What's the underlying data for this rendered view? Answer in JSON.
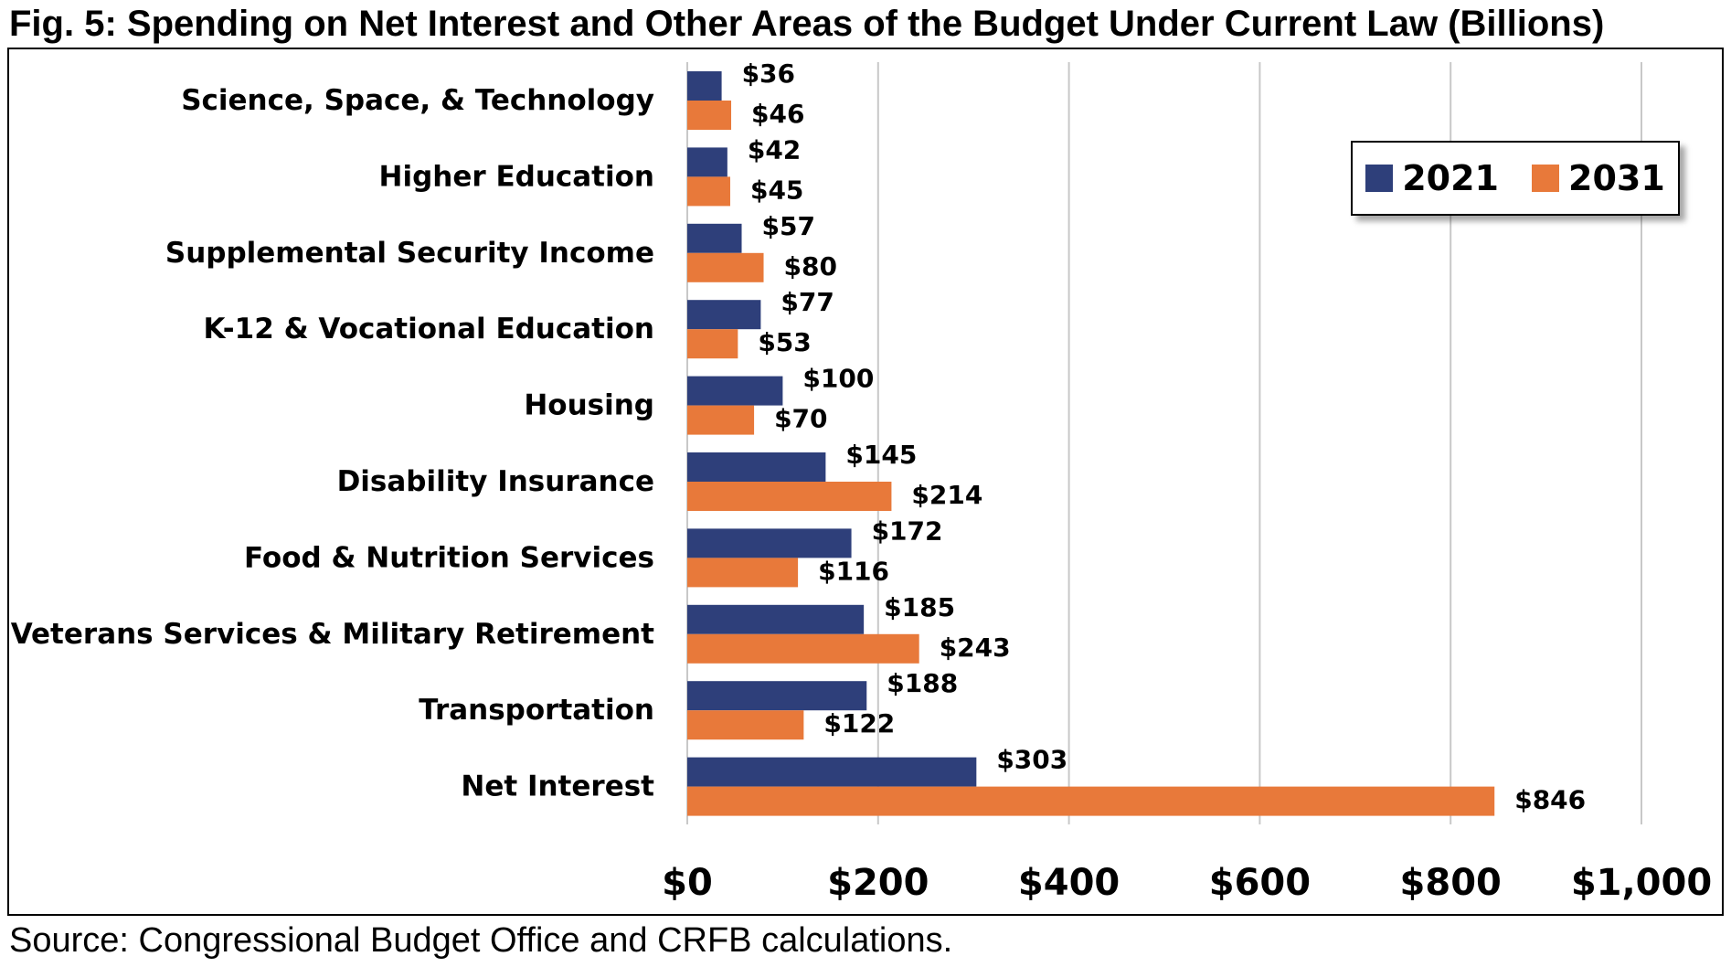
{
  "title": "Fig. 5: Spending on Net Interest and Other Areas of the Budget Under Current Law (Billions)",
  "source": "Source: Congressional Budget Office and CRFB calculations.",
  "colors": {
    "series_2021": "#2E3F7A",
    "series_2031": "#E8793A",
    "grid": "#C8C8C8"
  },
  "chart_data": {
    "type": "bar",
    "orientation": "horizontal",
    "title": "Fig. 5: Spending on Net Interest and Other Areas of the Budget Under Current Law (Billions)",
    "xlabel": "",
    "ylabel": "",
    "xlim": [
      0,
      1000
    ],
    "grid": true,
    "legend_position": "top-right",
    "categories": [
      "Science, Space, & Technology",
      "Higher Education",
      "Supplemental Security Income",
      "K-12 & Vocational Education",
      "Housing",
      "Disability Insurance",
      "Food & Nutrition Services",
      "Veterans Services & Military Retirement",
      "Transportation",
      "Net Interest"
    ],
    "series": [
      {
        "name": "2021",
        "values": [
          36,
          42,
          57,
          77,
          100,
          145,
          172,
          185,
          188,
          303
        ],
        "labels": [
          "$36",
          "$42",
          "$57",
          "$77",
          "$100",
          "$145",
          "$172",
          "$185",
          "$188",
          "$303"
        ]
      },
      {
        "name": "2031",
        "values": [
          46,
          45,
          80,
          53,
          70,
          214,
          116,
          243,
          122,
          846
        ],
        "labels": [
          "$46",
          "$45",
          "$80",
          "$53",
          "$70",
          "$214",
          "$116",
          "$243",
          "$122",
          "$846"
        ]
      }
    ],
    "ticks": [
      0,
      200,
      400,
      600,
      800,
      1000
    ],
    "tick_labels": [
      "$0",
      "$200",
      "$400",
      "$600",
      "$800",
      "$1,000"
    ]
  }
}
